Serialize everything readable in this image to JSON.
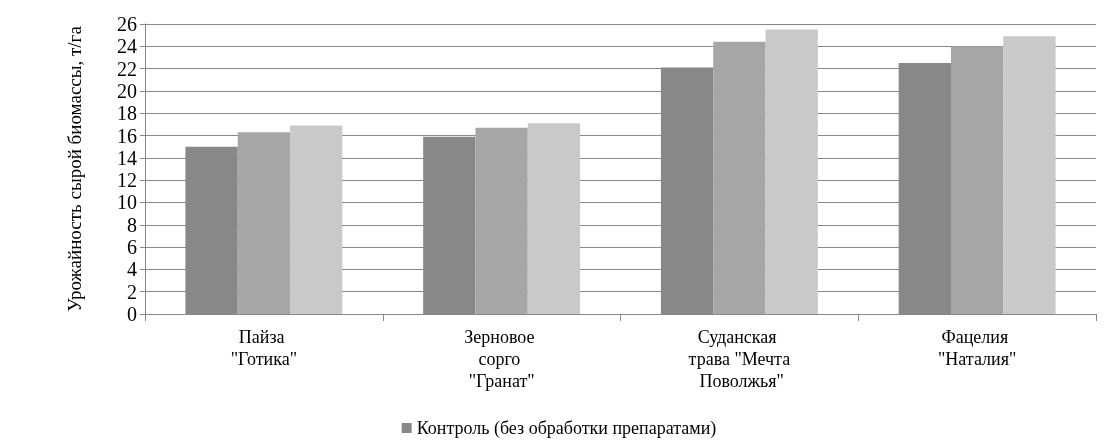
{
  "chart_data": {
    "type": "bar",
    "ylabel": "Урожайность сырой биомассы, т/га",
    "categories": [
      "Пайза \"Готика\"",
      "Зерновое сорго \"Гранат\"",
      "Суданская трава \"Мечта Поволжья\"",
      "Фацелия \"Наталия\""
    ],
    "series": [
      {
        "name": "Контроль (без обработки препаратами)",
        "color": "#888888",
        "values": [
          15.0,
          15.9,
          22.1,
          22.5
        ]
      },
      {
        "color": "#a6a6a6",
        "values": [
          16.3,
          16.7,
          24.4,
          24.0
        ]
      },
      {
        "color": "#c9c9c9",
        "values": [
          16.9,
          17.1,
          25.5,
          24.9
        ]
      }
    ],
    "ylim": [
      0,
      26
    ],
    "yticks": [
      0,
      2,
      4,
      6,
      8,
      10,
      12,
      14,
      16,
      18,
      20,
      22,
      24,
      26
    ],
    "grid": "y",
    "legend": "bottom"
  }
}
